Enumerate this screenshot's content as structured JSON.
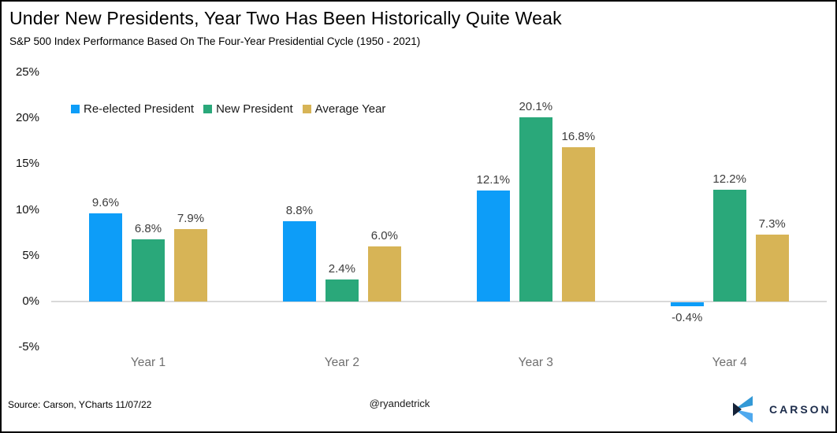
{
  "header": {
    "title": "Under New Presidents, Year Two Has Been Historically Quite Weak",
    "subtitle": "S&P 500 Index Performance Based On The Four-Year Presidential Cycle (1950 - 2021)"
  },
  "chart_data": {
    "type": "bar",
    "title": "Under New Presidents, Year Two Has Been Historically Quite Weak",
    "subtitle": "S&P 500 Index Performance Based On The Four-Year Presidential Cycle (1950 - 2021)",
    "categories": [
      "Year 1",
      "Year 2",
      "Year 3",
      "Year 4"
    ],
    "series": [
      {
        "name": "Re-elected President",
        "color": "#0d9df8",
        "values": [
          9.6,
          8.8,
          12.1,
          -0.4
        ],
        "labels": [
          "9.6%",
          "8.8%",
          "12.1%",
          "-0.4%"
        ]
      },
      {
        "name": "New President",
        "color": "#2aa87a",
        "values": [
          6.8,
          2.4,
          20.1,
          12.2
        ],
        "labels": [
          "6.8%",
          "2.4%",
          "20.1%",
          "12.2%"
        ]
      },
      {
        "name": "Average Year",
        "color": "#d7b456",
        "values": [
          7.9,
          6.0,
          16.8,
          7.3
        ],
        "labels": [
          "7.9%",
          "6.0%",
          "16.8%",
          "7.3%"
        ]
      }
    ],
    "ylabel": "",
    "xlabel": "",
    "ylim": [
      -5,
      25
    ],
    "yticks": [
      {
        "value": 25,
        "label": "25%"
      },
      {
        "value": 20,
        "label": "20%"
      },
      {
        "value": 15,
        "label": "15%"
      },
      {
        "value": 10,
        "label": "10%"
      },
      {
        "value": 5,
        "label": "5%"
      },
      {
        "value": 0,
        "label": "0%"
      },
      {
        "value": -5,
        "label": "-5%"
      }
    ],
    "grid": "zero baseline only",
    "legend_position": "top-left inside plot",
    "gridline_color": "#d9d9d9"
  },
  "footer": {
    "source": "Source: Carson, YCharts 11/07/22",
    "handle": "@ryandetrick"
  },
  "logo": {
    "text": "CARSON",
    "colors": {
      "text_navy": "#1b2b4a",
      "icon_top_blue": "#3399d6",
      "icon_bottom_blue": "#4fa9ee",
      "icon_arrow_navy": "#152238"
    }
  }
}
